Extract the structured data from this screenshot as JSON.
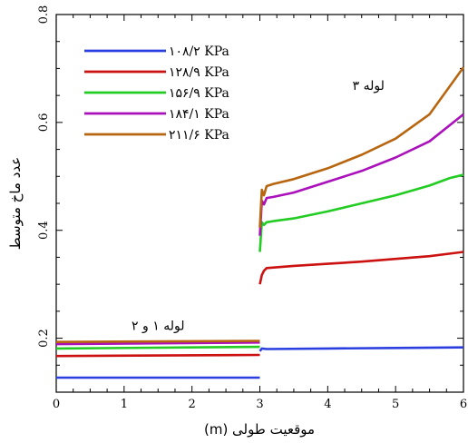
{
  "chart_data": {
    "type": "line",
    "title": "",
    "xlabel": "موقعیت طولی (m)",
    "ylabel": "عدد ماخ متوسط",
    "xlim": [
      0,
      6
    ],
    "ylim": [
      0.1,
      0.8
    ],
    "xticks": [
      "0",
      "1",
      "2",
      "3",
      "4",
      "5",
      "6"
    ],
    "yticks": [
      "0.2",
      "0.4",
      "0.6",
      "0.8"
    ],
    "yticks_values": [
      0.2,
      0.4,
      0.6,
      0.8
    ],
    "grid": false,
    "legend_position": "top-left",
    "annotations": [
      {
        "text": "لوله ۳",
        "x": 4.6,
        "y": 0.66
      },
      {
        "text": "لوله ۱ و ۲",
        "x": 1.5,
        "y": 0.215
      }
    ],
    "series": [
      {
        "name": "۱۰۸/۲ KPa",
        "color": "#2b3fe0",
        "segments": [
          {
            "x": [
              0,
              3
            ],
            "y": [
              0.127,
              0.127
            ]
          },
          {
            "x": [
              3.0,
              3.03,
              3.1,
              4,
              5,
              6
            ],
            "y": [
              0.176,
              0.181,
              0.18,
              0.181,
              0.182,
              0.183
            ]
          }
        ]
      },
      {
        "name": "۱۲۸/۹ KPa",
        "color": "#cc1111",
        "segments": [
          {
            "x": [
              0,
              3
            ],
            "y": [
              0.167,
              0.169
            ]
          },
          {
            "x": [
              3.0,
              3.03,
              3.06,
              3.1,
              3.5,
              4,
              4.5,
              5,
              5.5,
              6
            ],
            "y": [
              0.3,
              0.317,
              0.325,
              0.33,
              0.334,
              0.338,
              0.342,
              0.347,
              0.352,
              0.36
            ]
          }
        ]
      },
      {
        "name": "۱۵۶/۹ KPa",
        "color": "#22cc22",
        "segments": [
          {
            "x": [
              0,
              3
            ],
            "y": [
              0.181,
              0.184
            ]
          },
          {
            "x": [
              3.0,
              3.03,
              3.06,
              3.1,
              3.2,
              3.5,
              4,
              4.5,
              5,
              5.5,
              5.8,
              6
            ],
            "y": [
              0.36,
              0.415,
              0.41,
              0.415,
              0.417,
              0.422,
              0.435,
              0.45,
              0.465,
              0.483,
              0.497,
              0.503
            ]
          }
        ]
      },
      {
        "name": "۱۸۴/۱ KPa",
        "color": "#aa11bb",
        "segments": [
          {
            "x": [
              0,
              3
            ],
            "y": [
              0.189,
              0.192
            ]
          },
          {
            "x": [
              3.0,
              3.03,
              3.06,
              3.1,
              3.2,
              3.5,
              4,
              4.5,
              5,
              5.5,
              6
            ],
            "y": [
              0.39,
              0.455,
              0.448,
              0.46,
              0.462,
              0.47,
              0.49,
              0.51,
              0.535,
              0.565,
              0.615
            ]
          }
        ]
      },
      {
        "name": "۲۱۱/۶ KPa",
        "color": "#b8650f",
        "segments": [
          {
            "x": [
              0,
              3
            ],
            "y": [
              0.193,
              0.195
            ]
          },
          {
            "x": [
              3.0,
              3.03,
              3.06,
              3.1,
              3.2,
              3.5,
              4,
              4.5,
              5,
              5.5,
              6
            ],
            "y": [
              0.405,
              0.475,
              0.465,
              0.482,
              0.486,
              0.495,
              0.515,
              0.54,
              0.57,
              0.615,
              0.702
            ]
          }
        ]
      }
    ]
  }
}
